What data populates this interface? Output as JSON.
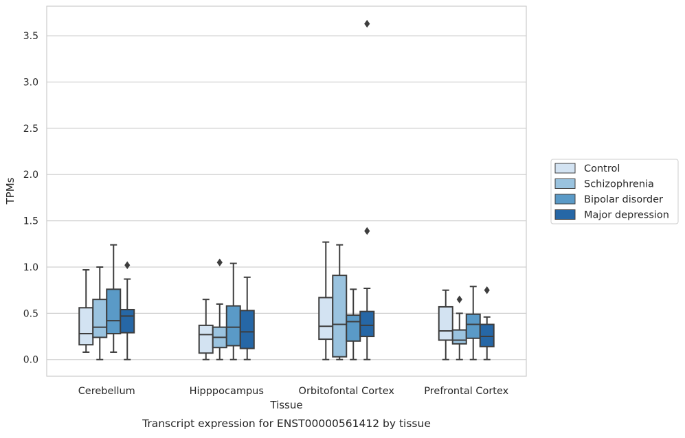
{
  "chart_data": {
    "type": "box",
    "title": "",
    "caption": "Transcript expression for ENST00000561412 by tissue",
    "xlabel": "Tissue",
    "ylabel": "TPMs",
    "ylim": [
      -0.18,
      3.82
    ],
    "yticks": [
      "0.0",
      "0.5",
      "1.0",
      "1.5",
      "2.0",
      "2.5",
      "3.0",
      "3.5"
    ],
    "grid": "horizontal",
    "legend_position": "right",
    "categories": [
      "Cerebellum",
      "Hipppocampus",
      "Orbitofontal Cortex",
      "Prefrontal Cortex"
    ],
    "series": [
      {
        "name": "Control",
        "color": "#d3e3f2",
        "boxes": [
          {
            "whislo": 0.08,
            "q1": 0.16,
            "med": 0.28,
            "q3": 0.56,
            "whishi": 0.97,
            "fliers": []
          },
          {
            "whislo": 0.0,
            "q1": 0.07,
            "med": 0.27,
            "q3": 0.37,
            "whishi": 0.65,
            "fliers": []
          },
          {
            "whislo": 0.0,
            "q1": 0.22,
            "med": 0.36,
            "q3": 0.67,
            "whishi": 1.27,
            "fliers": []
          },
          {
            "whislo": 0.0,
            "q1": 0.21,
            "med": 0.31,
            "q3": 0.57,
            "whishi": 0.75,
            "fliers": []
          }
        ]
      },
      {
        "name": "Schizophrenia",
        "color": "#9ac3df",
        "boxes": [
          {
            "whislo": 0.0,
            "q1": 0.24,
            "med": 0.35,
            "q3": 0.65,
            "whishi": 1.0,
            "fliers": []
          },
          {
            "whislo": 0.0,
            "q1": 0.13,
            "med": 0.24,
            "q3": 0.35,
            "whishi": 0.6,
            "fliers": [
              1.05
            ]
          },
          {
            "whislo": 0.0,
            "q1": 0.03,
            "med": 0.38,
            "q3": 0.91,
            "whishi": 1.24,
            "fliers": []
          },
          {
            "whislo": 0.0,
            "q1": 0.17,
            "med": 0.21,
            "q3": 0.32,
            "whishi": 0.5,
            "fliers": [
              0.65
            ]
          }
        ]
      },
      {
        "name": "Bipolar disorder",
        "color": "#5a9ac7",
        "boxes": [
          {
            "whislo": 0.08,
            "q1": 0.28,
            "med": 0.42,
            "q3": 0.76,
            "whishi": 1.24,
            "fliers": []
          },
          {
            "whislo": 0.0,
            "q1": 0.15,
            "med": 0.35,
            "q3": 0.58,
            "whishi": 1.04,
            "fliers": []
          },
          {
            "whislo": 0.0,
            "q1": 0.2,
            "med": 0.41,
            "q3": 0.48,
            "whishi": 0.76,
            "fliers": []
          },
          {
            "whislo": 0.0,
            "q1": 0.23,
            "med": 0.38,
            "q3": 0.49,
            "whishi": 0.79,
            "fliers": []
          }
        ]
      },
      {
        "name": "Major depression",
        "color": "#2667a6",
        "boxes": [
          {
            "whislo": 0.0,
            "q1": 0.29,
            "med": 0.47,
            "q3": 0.54,
            "whishi": 0.87,
            "fliers": [
              1.02
            ]
          },
          {
            "whislo": 0.0,
            "q1": 0.12,
            "med": 0.3,
            "q3": 0.53,
            "whishi": 0.89,
            "fliers": []
          },
          {
            "whislo": 0.0,
            "q1": 0.25,
            "med": 0.37,
            "q3": 0.52,
            "whishi": 0.77,
            "fliers": [
              3.63,
              1.39
            ]
          },
          {
            "whislo": 0.0,
            "q1": 0.14,
            "med": 0.25,
            "q3": 0.38,
            "whishi": 0.46,
            "fliers": [
              0.75
            ]
          }
        ]
      }
    ]
  }
}
